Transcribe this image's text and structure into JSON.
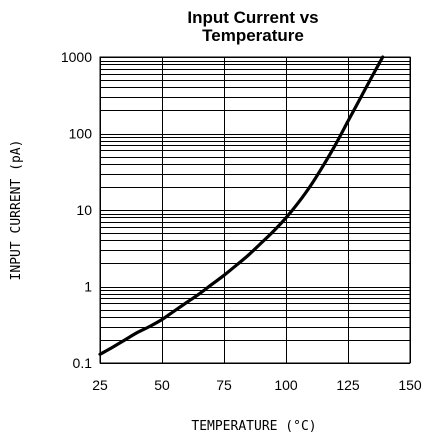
{
  "chart_data": {
    "type": "line",
    "title_lines": [
      "Input Current vs",
      "Temperature"
    ],
    "xlabel": "TEMPERATURE (°C)",
    "ylabel": "INPUT CURRENT (pA)",
    "x_scale": "linear",
    "y_scale": "log",
    "xlim": [
      25,
      150
    ],
    "ylim": [
      0.1,
      1000
    ],
    "x_ticks": [
      25,
      50,
      75,
      100,
      125,
      150
    ],
    "x_tick_labels": [
      "25",
      "50",
      "75",
      "100",
      "125",
      "150"
    ],
    "y_ticks": [
      0.1,
      1,
      10,
      100,
      1000
    ],
    "y_tick_labels": [
      "0.1",
      "1",
      "10",
      "100",
      "1000"
    ],
    "grid": true,
    "series": [
      {
        "x": [
          25,
          30,
          35,
          40,
          45,
          50,
          55,
          60,
          65,
          70,
          75,
          80,
          85,
          90,
          95,
          100,
          105,
          110,
          115,
          120,
          125,
          130,
          135,
          139
        ],
        "y": [
          0.13,
          0.16,
          0.2,
          0.25,
          0.3,
          0.37,
          0.48,
          0.62,
          0.8,
          1.06,
          1.4,
          1.9,
          2.6,
          3.7,
          5.3,
          7.9,
          12.5,
          21,
          38,
          72,
          145,
          290,
          580,
          1000
        ]
      }
    ]
  }
}
